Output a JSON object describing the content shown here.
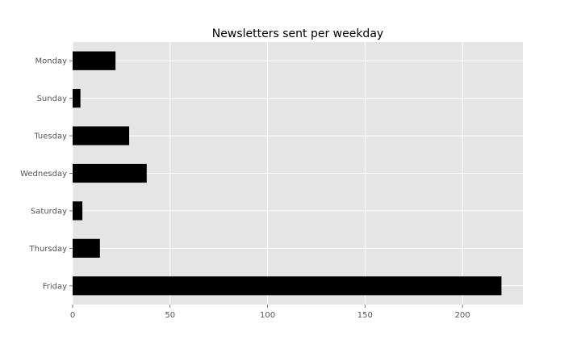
{
  "chart_data": {
    "type": "bar",
    "orientation": "horizontal",
    "title": "Newsletters sent per weekday",
    "xlabel": "",
    "ylabel": "",
    "categories": [
      "Monday",
      "Sunday",
      "Tuesday",
      "Wednesday",
      "Saturday",
      "Thursday",
      "Friday"
    ],
    "values": [
      22,
      4,
      29,
      38,
      5,
      14,
      220
    ],
    "xlim": [
      0,
      231
    ],
    "xticks": [
      0,
      50,
      100,
      150,
      200
    ],
    "grid": true,
    "legend": "none",
    "colors": {
      "bar": "#000000",
      "plot_background": "#e5e5e5",
      "grid": "#ffffff",
      "tick_text": "#555555"
    }
  }
}
